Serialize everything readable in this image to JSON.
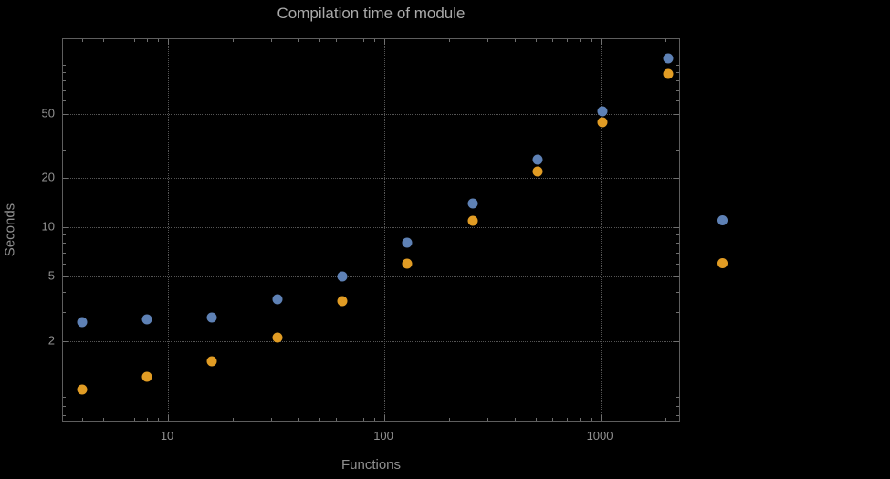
{
  "title": "Compilation time of module",
  "axes": {
    "xlabel": "Functions",
    "ylabel": "Seconds"
  },
  "colors": {
    "background": "#000000",
    "frame": "#5e5e5e",
    "grid": "#545454",
    "text": "#909090",
    "series_blue": "#5e81b5",
    "series_orange": "#e19c24"
  },
  "chart_data": {
    "type": "scatter",
    "title": "Compilation time of module",
    "xlabel": "Functions",
    "ylabel": "Seconds",
    "x_scale": "log",
    "y_scale": "log",
    "grid": "dotted",
    "x": [
      4,
      8,
      16,
      32,
      64,
      128,
      256,
      512,
      1024,
      2048
    ],
    "series": [
      {
        "name": "series-1",
        "color": "#5e81b5",
        "values": [
          2.6,
          2.7,
          2.8,
          3.6,
          5.0,
          8.0,
          14,
          26,
          52,
          110
        ]
      },
      {
        "name": "series-2",
        "color": "#e19c24",
        "values": [
          1.0,
          1.2,
          1.5,
          2.1,
          3.5,
          6.0,
          11,
          22,
          44,
          88
        ]
      }
    ],
    "x_ticks": [
      10,
      100,
      1000
    ],
    "y_ticks": [
      2,
      5,
      10,
      20,
      50
    ],
    "xlim": [
      3.27,
      2350
    ],
    "ylim": [
      0.63,
      143.5
    ],
    "legend_position": "right"
  },
  "legend": {
    "items": [
      {
        "name": "series-1",
        "color": "#5e81b5",
        "label": ""
      },
      {
        "name": "series-2",
        "color": "#e19c24",
        "label": ""
      }
    ]
  }
}
